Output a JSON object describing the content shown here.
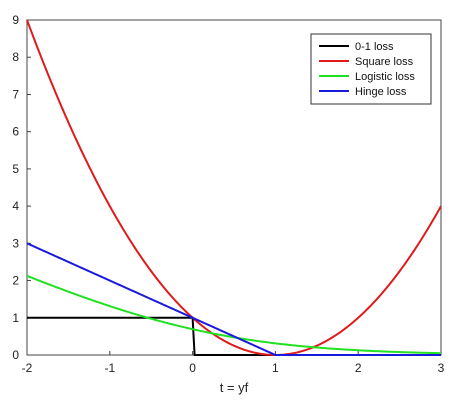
{
  "chart_data": {
    "type": "line",
    "title": "",
    "xlabel": "t = yf",
    "ylabel": "",
    "xlim": [
      -2,
      3
    ],
    "ylim": [
      0,
      9
    ],
    "xticks": [
      -2,
      -1,
      0,
      1,
      2,
      3
    ],
    "yticks": [
      0,
      1,
      2,
      3,
      4,
      5,
      6,
      7,
      8,
      9
    ],
    "x": [
      -2,
      -1.5,
      -1,
      -0.5,
      0,
      0.5,
      1,
      1.5,
      2,
      2.5,
      3
    ],
    "legend_position": "top-right",
    "series": [
      {
        "name": "0-1 loss",
        "color": "#000000",
        "values": [
          1,
          1,
          1,
          1,
          0,
          0,
          0,
          0,
          0,
          0,
          0
        ]
      },
      {
        "name": "Square loss",
        "color": "#e01a1a",
        "values": [
          9,
          6.25,
          4,
          2.25,
          1,
          0.25,
          0,
          0.25,
          1,
          2.25,
          4
        ]
      },
      {
        "name": "Logistic loss",
        "color": "#22e022",
        "values": [
          2.13,
          1.58,
          1.31,
          0.97,
          0.69,
          0.47,
          0.31,
          0.2,
          0.13,
          0.08,
          0.05
        ]
      },
      {
        "name": "Hinge loss",
        "color": "#1a1adc",
        "values": [
          3,
          2.5,
          2,
          1.5,
          1,
          0.5,
          0,
          0,
          0,
          0,
          0
        ]
      }
    ]
  }
}
